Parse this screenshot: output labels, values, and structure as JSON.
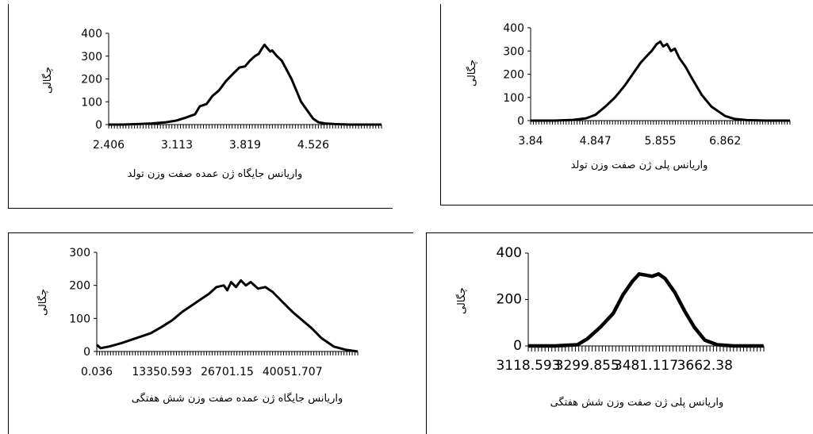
{
  "chart_data": [
    {
      "type": "line",
      "ylabel": "چگالی",
      "xlabel": "واریانس جایگاه ژن عمده صفت وزن تولد",
      "yticks": [
        0,
        100,
        200,
        300,
        400
      ],
      "ylim": [
        0,
        400
      ],
      "xticks": [
        "2.406",
        "3.113",
        "3.819",
        "4.526"
      ],
      "xlim": [
        2.406,
        5.233
      ],
      "x": [
        2.406,
        2.55,
        2.7,
        2.85,
        3.0,
        3.113,
        3.2,
        3.3,
        3.35,
        3.42,
        3.48,
        3.55,
        3.62,
        3.7,
        3.76,
        3.819,
        3.87,
        3.92,
        3.96,
        3.99,
        4.02,
        4.05,
        4.08,
        4.1,
        4.15,
        4.2,
        4.25,
        4.3,
        4.35,
        4.4,
        4.45,
        4.5,
        4.526,
        4.58,
        4.65,
        4.75,
        4.9,
        5.05,
        5.233
      ],
      "values": [
        0,
        0,
        2,
        5,
        10,
        18,
        30,
        45,
        80,
        90,
        125,
        150,
        190,
        225,
        250,
        255,
        280,
        300,
        310,
        330,
        350,
        335,
        320,
        325,
        300,
        280,
        240,
        200,
        150,
        100,
        70,
        40,
        25,
        10,
        5,
        2,
        0,
        0,
        0
      ]
    },
    {
      "type": "line",
      "ylabel": "چگالی",
      "xlabel": "واریانس پلی ژن صفت وزن تولد",
      "yticks": [
        0,
        100,
        200,
        300,
        400
      ],
      "ylim": [
        0,
        400
      ],
      "xticks": [
        "3.84",
        "4.847",
        "5.855",
        "6.862"
      ],
      "xlim": [
        3.84,
        7.87
      ],
      "x": [
        3.84,
        4.2,
        4.5,
        4.7,
        4.847,
        5.0,
        5.15,
        5.3,
        5.45,
        5.55,
        5.65,
        5.72,
        5.8,
        5.855,
        5.9,
        5.96,
        6.02,
        6.08,
        6.15,
        6.25,
        6.35,
        6.5,
        6.65,
        6.862,
        7.0,
        7.2,
        7.5,
        7.87
      ],
      "values": [
        0,
        0,
        3,
        10,
        25,
        60,
        100,
        150,
        210,
        250,
        280,
        300,
        330,
        340,
        320,
        330,
        300,
        310,
        270,
        230,
        180,
        110,
        60,
        20,
        8,
        2,
        0,
        0
      ]
    },
    {
      "type": "line",
      "ylabel": "چگالی",
      "xlabel": "واریانس جایگاه ژن عمده صفت وزن شش هفتگی",
      "yticks": [
        0,
        100,
        200,
        300
      ],
      "ylim": [
        0,
        300
      ],
      "xticks": [
        "0.036",
        "13350.593",
        "26701.15",
        "40051.707"
      ],
      "xlim": [
        0.036,
        53402.264
      ],
      "x": [
        0.036,
        800,
        2500,
        5000,
        8000,
        11000,
        13350,
        15500,
        17500,
        19500,
        21500,
        23000,
        24500,
        26000,
        26701,
        27500,
        28500,
        29500,
        30500,
        31500,
        33000,
        34500,
        36000,
        38000,
        40051,
        42000,
        44000,
        46000,
        48500,
        51000,
        53402
      ],
      "values": [
        20,
        10,
        15,
        25,
        40,
        55,
        75,
        95,
        120,
        140,
        160,
        175,
        195,
        200,
        185,
        210,
        195,
        215,
        200,
        210,
        190,
        195,
        180,
        150,
        120,
        95,
        70,
        40,
        15,
        5,
        0
      ],
      "_note": ""
    },
    {
      "type": "line",
      "ylabel": "چگالی",
      "xlabel": "واریانس پلی ژن صفت وزن شش هفتگی",
      "yticks": [
        0,
        200,
        400
      ],
      "ylim": [
        0,
        400
      ],
      "xticks": [
        "3118.593",
        "3299.855",
        "3481.117",
        "3662.38"
      ],
      "xlim": [
        3118.593,
        3843.642
      ],
      "x": [
        3118.593,
        3200,
        3270,
        3300,
        3340,
        3380,
        3410,
        3440,
        3460,
        3481,
        3500,
        3520,
        3540,
        3570,
        3600,
        3630,
        3662,
        3700,
        3750,
        3843
      ],
      "values": [
        0,
        0,
        5,
        30,
        80,
        140,
        220,
        280,
        310,
        305,
        300,
        310,
        290,
        230,
        150,
        80,
        25,
        5,
        0,
        0
      ]
    }
  ]
}
